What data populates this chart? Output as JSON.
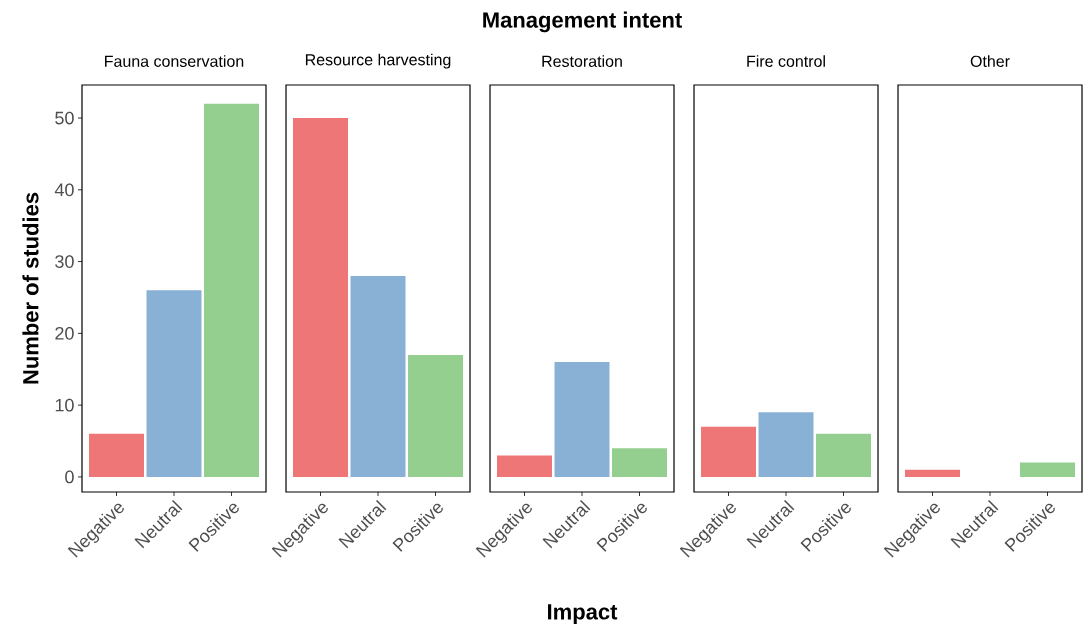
{
  "chart_data": [
    {
      "type": "bar",
      "title": "Fauna conservation",
      "ylabel": "Number of studies",
      "categories": [
        "Negative",
        "Neutral",
        "Positive"
      ],
      "values": [
        6,
        26,
        52
      ],
      "colors": [
        "#ee7676",
        "#89b0d5",
        "#94cf8f"
      ],
      "ylim": [
        -2.1,
        54.6
      ],
      "yticks": [
        0,
        10,
        20,
        30,
        40,
        50
      ],
      "grid": false
    },
    {
      "type": "bar",
      "title": "Resource harvesting",
      "categories": [
        "Negative",
        "Neutral",
        "Positive"
      ],
      "values": [
        50,
        28,
        17
      ],
      "colors": [
        "#ee7676",
        "#89b0d5",
        "#94cf8f"
      ],
      "ylim": [
        -2.1,
        54.6
      ],
      "tick_labels": "x",
      "grid": false
    },
    {
      "type": "bar",
      "title": "Restoration",
      "xlabel": "Impact",
      "annotations": [
        "Management intent"
      ],
      "categories": [
        "Negative",
        "Neutral",
        "Positive"
      ],
      "values": [
        3,
        16,
        4
      ],
      "colors": [
        "#ee7676",
        "#89b0d5",
        "#94cf8f"
      ],
      "ylim": [
        -2.1,
        54.6
      ],
      "tick_labels": "x",
      "grid": false
    },
    {
      "type": "bar",
      "title": "Fire control",
      "categories": [
        "Negative",
        "Neutral",
        "Positive"
      ],
      "values": [
        7,
        9,
        6
      ],
      "colors": [
        "#ee7676",
        "#89b0d5",
        "#94cf8f"
      ],
      "ylim": [
        -2.1,
        54.6
      ],
      "tick_labels": "x",
      "grid": false
    },
    {
      "type": "bar",
      "title": "Other",
      "categories": [
        "Negative",
        "Neutral",
        "Positive"
      ],
      "values": [
        1,
        null,
        2
      ],
      "colors": [
        "#ee7676",
        "#89b0d5",
        "#94cf8f"
      ],
      "ylim": [
        -2.1,
        54.6
      ],
      "tick_labels": "x",
      "grid": false
    }
  ]
}
